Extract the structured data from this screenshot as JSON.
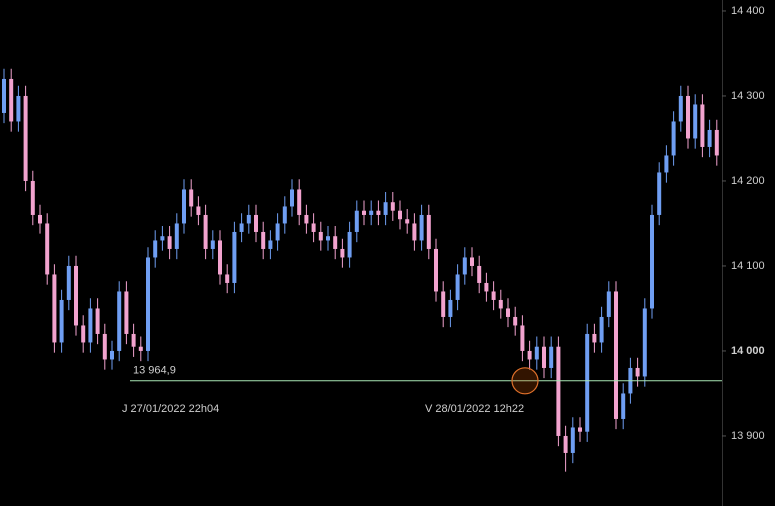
{
  "chart_data": {
    "type": "candlestick",
    "ylim": [
      13817.6,
      14412.9
    ],
    "yticks": [
      {
        "value": 13900,
        "label": "13 900"
      },
      {
        "value": 14000,
        "label": "14 000",
        "bold": true
      },
      {
        "value": 14100,
        "label": "14 100"
      },
      {
        "value": 14200,
        "label": "14 200"
      },
      {
        "value": 14300,
        "label": "14 300"
      },
      {
        "value": 14400,
        "label": "14 400"
      }
    ],
    "up_color": "#6f9ef2",
    "down_color": "#f2a3cf",
    "level": {
      "value": 13964.9,
      "label": "13 964,9",
      "color": "#a8e6b4",
      "label_color": "#5fe08a"
    },
    "annotations": [
      "J 27/01/2022 22h04",
      "V 28/01/2022 12h22"
    ],
    "candles": {
      "open": [
        14280,
        14320,
        14270,
        14300,
        14200,
        14160,
        14150,
        14090,
        14010,
        14060,
        14100,
        14030,
        14010,
        14050,
        14020,
        13990,
        14000,
        14070,
        14020,
        14005,
        14000,
        14110,
        14130,
        14135,
        14120,
        14150,
        14190,
        14170,
        14160,
        14120,
        14130,
        14090,
        14080,
        14140,
        14150,
        14160,
        14140,
        14120,
        14130,
        14150,
        14170,
        14190,
        14160,
        14150,
        14140,
        14130,
        14135,
        14120,
        14110,
        14140,
        14165,
        14160,
        14165,
        14160,
        14175,
        14165,
        14155,
        14150,
        14130,
        14160,
        14120,
        14070,
        14040,
        14060,
        14090,
        14110,
        14100,
        14080,
        14070,
        14060,
        14050,
        14040,
        14030,
        14000,
        13990,
        14005,
        13980,
        14005,
        13900,
        13880,
        13910,
        13905,
        14020,
        14010,
        14040,
        14070,
        13920,
        13950,
        13980,
        13970,
        14050,
        14160,
        14210,
        14230,
        14270,
        14300,
        14250,
        14290,
        14240,
        14260
      ],
      "high": [
        14332,
        14332,
        14312,
        14312,
        14212,
        14172,
        14162,
        14102,
        14072,
        14112,
        14112,
        14042,
        14062,
        14062,
        14032,
        14012,
        14082,
        14082,
        14032,
        14017,
        14122,
        14142,
        14147,
        14147,
        14162,
        14202,
        14202,
        14182,
        14172,
        14142,
        14142,
        14102,
        14152,
        14162,
        14172,
        14172,
        14152,
        14142,
        14162,
        14182,
        14202,
        14202,
        14172,
        14162,
        14152,
        14147,
        14147,
        14132,
        14152,
        14177,
        14177,
        14177,
        14177,
        14187,
        14187,
        14177,
        14167,
        14162,
        14172,
        14172,
        14132,
        14082,
        14072,
        14102,
        14122,
        14122,
        14112,
        14092,
        14082,
        14072,
        14062,
        14052,
        14042,
        14012,
        14017,
        14017,
        14017,
        14017,
        13912,
        13922,
        13922,
        14032,
        14032,
        14052,
        14082,
        14082,
        13962,
        13992,
        13992,
        14062,
        14172,
        14222,
        14242,
        14282,
        14312,
        14312,
        14302,
        14302,
        14272,
        14272
      ],
      "low": [
        14268,
        14258,
        14258,
        14188,
        14148,
        14138,
        14078,
        13998,
        13998,
        14048,
        14018,
        13998,
        13998,
        14008,
        13978,
        13978,
        13988,
        14008,
        13993,
        13988,
        13988,
        14098,
        14118,
        14108,
        14108,
        14138,
        14158,
        14148,
        14108,
        14108,
        14078,
        14068,
        14068,
        14128,
        14138,
        14128,
        14108,
        14108,
        14118,
        14138,
        14158,
        14148,
        14138,
        14128,
        14118,
        14118,
        14108,
        14098,
        14098,
        14128,
        14148,
        14148,
        14148,
        14148,
        14153,
        14143,
        14138,
        14118,
        14118,
        14108,
        14058,
        14028,
        14028,
        14048,
        14078,
        14088,
        14068,
        14058,
        14048,
        14038,
        14028,
        14018,
        13988,
        13978,
        13978,
        13968,
        13968,
        13888,
        13858,
        13868,
        13893,
        13893,
        13998,
        13998,
        14028,
        13908,
        13908,
        13938,
        13958,
        13958,
        14038,
        14148,
        14198,
        14218,
        14258,
        14238,
        14238,
        14228,
        14228,
        14218
      ],
      "close": [
        14320,
        14270,
        14300,
        14200,
        14160,
        14150,
        14090,
        14010,
        14060,
        14100,
        14030,
        14010,
        14050,
        14020,
        13990,
        14000,
        14070,
        14020,
        14005,
        14000,
        14110,
        14130,
        14135,
        14120,
        14150,
        14190,
        14170,
        14160,
        14120,
        14130,
        14090,
        14080,
        14140,
        14150,
        14160,
        14140,
        14120,
        14130,
        14150,
        14170,
        14190,
        14160,
        14150,
        14140,
        14130,
        14135,
        14120,
        14110,
        14140,
        14165,
        14160,
        14165,
        14160,
        14175,
        14165,
        14155,
        14150,
        14130,
        14160,
        14120,
        14070,
        14040,
        14060,
        14090,
        14110,
        14100,
        14080,
        14070,
        14060,
        14050,
        14040,
        14030,
        14000,
        13990,
        14005,
        13980,
        14005,
        13900,
        13880,
        13910,
        13905,
        14020,
        14010,
        14040,
        14070,
        13920,
        13950,
        13980,
        13970,
        14050,
        14160,
        14210,
        14230,
        14270,
        14300,
        14250,
        14290,
        14240,
        14260,
        14230
      ]
    }
  }
}
